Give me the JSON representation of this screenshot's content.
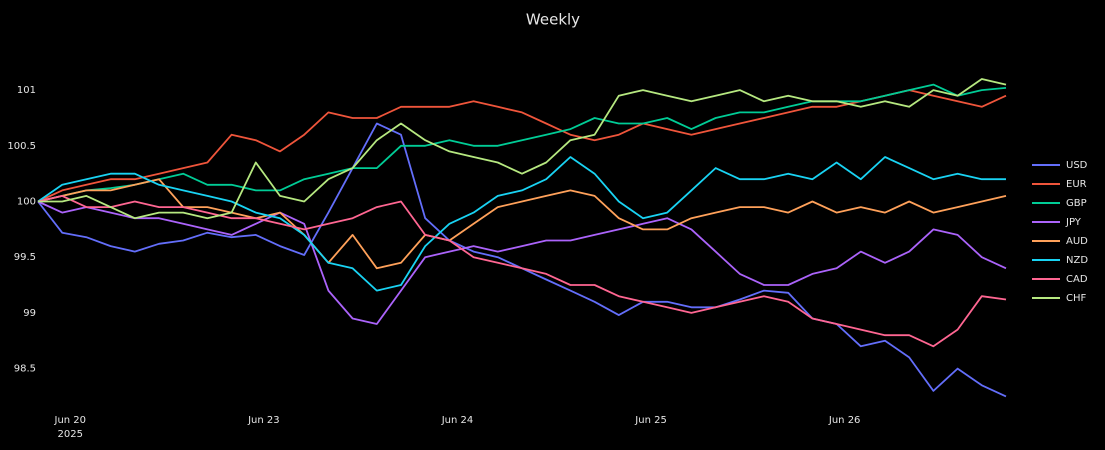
{
  "chart_data": {
    "type": "line",
    "title": "Weekly",
    "x": [
      0,
      3,
      6,
      9,
      12,
      15,
      18,
      21,
      24,
      27,
      30,
      33,
      36,
      39,
      42,
      45,
      48,
      51,
      54,
      57,
      60,
      63,
      66,
      69,
      72,
      75,
      78,
      81,
      84,
      87,
      90,
      93,
      96,
      99,
      102,
      105,
      108,
      111,
      114,
      117,
      120
    ],
    "xlim": [
      0,
      120
    ],
    "xticks": [
      {
        "value": 4,
        "label": "Jun 20"
      },
      {
        "value": 28,
        "label": "Jun 23"
      },
      {
        "value": 52,
        "label": "Jun 24"
      },
      {
        "value": 76,
        "label": "Jun 25"
      },
      {
        "value": 100,
        "label": "Jun 26"
      }
    ],
    "x_year": "2025",
    "ylim": [
      98.2,
      101.45
    ],
    "yticks": [
      98.5,
      99,
      99.5,
      100,
      100.5,
      101
    ],
    "grid": false,
    "legend": "right",
    "series": [
      {
        "name": "USD",
        "color": "#636efa",
        "values": [
          100,
          99.72,
          99.68,
          99.6,
          99.55,
          99.62,
          99.65,
          99.72,
          99.68,
          99.7,
          99.6,
          99.52,
          99.9,
          100.3,
          100.7,
          100.6,
          99.85,
          99.65,
          99.55,
          99.5,
          99.4,
          99.3,
          99.2,
          99.1,
          98.98,
          99.1,
          99.1,
          99.05,
          99.05,
          99.12,
          99.2,
          99.18,
          98.95,
          98.9,
          98.7,
          98.75,
          98.6,
          98.3,
          98.5,
          98.35,
          98.25
        ]
      },
      {
        "name": "EUR",
        "color": "#ef553b",
        "values": [
          100,
          100.1,
          100.15,
          100.2,
          100.2,
          100.25,
          100.3,
          100.35,
          100.6,
          100.55,
          100.45,
          100.6,
          100.8,
          100.75,
          100.75,
          100.85,
          100.85,
          100.85,
          100.9,
          100.85,
          100.8,
          100.7,
          100.6,
          100.55,
          100.6,
          100.7,
          100.65,
          100.6,
          100.65,
          100.7,
          100.75,
          100.8,
          100.85,
          100.85,
          100.9,
          100.95,
          101.0,
          100.95,
          100.9,
          100.85,
          100.95
        ]
      },
      {
        "name": "GBP",
        "color": "#00cc96",
        "values": [
          100,
          100.05,
          100.1,
          100.12,
          100.15,
          100.2,
          100.25,
          100.15,
          100.15,
          100.1,
          100.1,
          100.2,
          100.25,
          100.3,
          100.3,
          100.5,
          100.5,
          100.55,
          100.5,
          100.5,
          100.55,
          100.6,
          100.65,
          100.75,
          100.7,
          100.7,
          100.75,
          100.65,
          100.75,
          100.8,
          100.8,
          100.85,
          100.9,
          100.9,
          100.9,
          100.95,
          101.0,
          101.05,
          100.95,
          101.0,
          101.02
        ]
      },
      {
        "name": "JPY",
        "color": "#ab63fa",
        "values": [
          100,
          99.9,
          99.95,
          99.9,
          99.85,
          99.85,
          99.8,
          99.75,
          99.7,
          99.8,
          99.9,
          99.8,
          99.2,
          98.95,
          98.9,
          99.2,
          99.5,
          99.55,
          99.6,
          99.55,
          99.6,
          99.65,
          99.65,
          99.7,
          99.75,
          99.8,
          99.85,
          99.75,
          99.55,
          99.35,
          99.25,
          99.25,
          99.35,
          99.4,
          99.55,
          99.45,
          99.55,
          99.75,
          99.7,
          99.5,
          99.4
        ]
      },
      {
        "name": "AUD",
        "color": "#ffa15a",
        "values": [
          100,
          100.05,
          100.1,
          100.1,
          100.15,
          100.2,
          99.95,
          99.95,
          99.9,
          99.85,
          99.9,
          99.7,
          99.45,
          99.7,
          99.4,
          99.45,
          99.7,
          99.65,
          99.8,
          99.95,
          100.0,
          100.05,
          100.1,
          100.05,
          99.85,
          99.75,
          99.75,
          99.85,
          99.9,
          99.95,
          99.95,
          99.9,
          100.0,
          99.9,
          99.95,
          99.9,
          100.0,
          99.9,
          99.95,
          100.0,
          100.05
        ]
      },
      {
        "name": "NZD",
        "color": "#19d3f3",
        "values": [
          100,
          100.15,
          100.2,
          100.25,
          100.25,
          100.15,
          100.1,
          100.05,
          100.0,
          99.9,
          99.85,
          99.7,
          99.45,
          99.4,
          99.2,
          99.25,
          99.6,
          99.8,
          99.9,
          100.05,
          100.1,
          100.2,
          100.4,
          100.25,
          100.0,
          99.85,
          99.9,
          100.1,
          100.3,
          100.2,
          100.2,
          100.25,
          100.2,
          100.35,
          100.2,
          100.4,
          100.3,
          100.2,
          100.25,
          100.2,
          100.2
        ]
      },
      {
        "name": "CAD",
        "color": "#ff6692",
        "values": [
          100,
          100.05,
          99.95,
          99.95,
          100.0,
          99.95,
          99.95,
          99.9,
          99.85,
          99.85,
          99.8,
          99.75,
          99.8,
          99.85,
          99.95,
          100.0,
          99.7,
          99.65,
          99.5,
          99.45,
          99.4,
          99.35,
          99.25,
          99.25,
          99.15,
          99.1,
          99.05,
          99.0,
          99.05,
          99.1,
          99.15,
          99.1,
          98.95,
          98.9,
          98.85,
          98.8,
          98.8,
          98.7,
          98.85,
          99.15,
          99.12
        ]
      },
      {
        "name": "CHF",
        "color": "#b6e880",
        "values": [
          100,
          100.0,
          100.05,
          99.95,
          99.85,
          99.9,
          99.9,
          99.85,
          99.9,
          100.35,
          100.05,
          100.0,
          100.2,
          100.3,
          100.55,
          100.7,
          100.55,
          100.45,
          100.4,
          100.35,
          100.25,
          100.35,
          100.55,
          100.6,
          100.95,
          101.0,
          100.95,
          100.9,
          100.95,
          101.0,
          100.9,
          100.95,
          100.9,
          100.9,
          100.85,
          100.9,
          100.85,
          101.0,
          100.95,
          101.1,
          101.05
        ]
      }
    ]
  }
}
